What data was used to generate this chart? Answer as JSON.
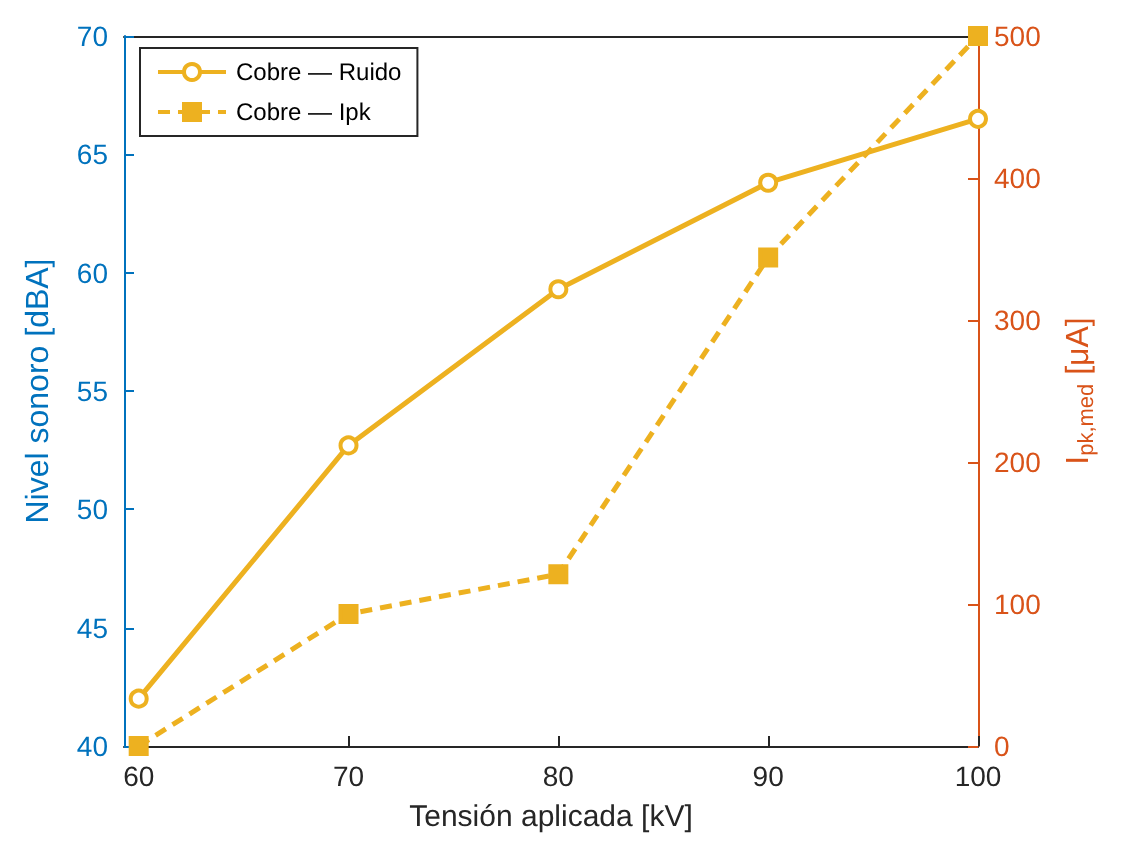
{
  "chart_data": {
    "type": "line",
    "xlabel": "Tensión aplicada [kV]",
    "ylabel": "Nivel sonoro [dBA]",
    "y2label": "I$_{pk,med}$ [μA]",
    "x": [
      60,
      70,
      80,
      90,
      100
    ],
    "series": [
      {
        "name": "Cobre — Ruido",
        "color": "#edb120",
        "values": [
          42,
          52.7,
          59.3,
          63.8,
          66.5
        ],
        "marker": "circle",
        "line_style": "solid"
      },
      {
        "name": "Cobre — Ipk",
        "color": "#edb120",
        "values": [
          0,
          93,
          121,
          344,
          500
        ],
        "marker": "square",
        "line_style": "dashed",
        "axis": "y2"
      }
    ],
    "xlim": [
      59.3,
      100
    ],
    "xticks": [
      60,
      70,
      80,
      90,
      100
    ],
    "ylim": [
      40,
      70
    ],
    "yticks": [
      40,
      45,
      50,
      55,
      60,
      65,
      70
    ],
    "y2lim": [
      0,
      500
    ],
    "y2ticks": [
      0,
      100,
      200,
      300,
      400,
      500
    ],
    "legend": "top left",
    "grid": false
  }
}
